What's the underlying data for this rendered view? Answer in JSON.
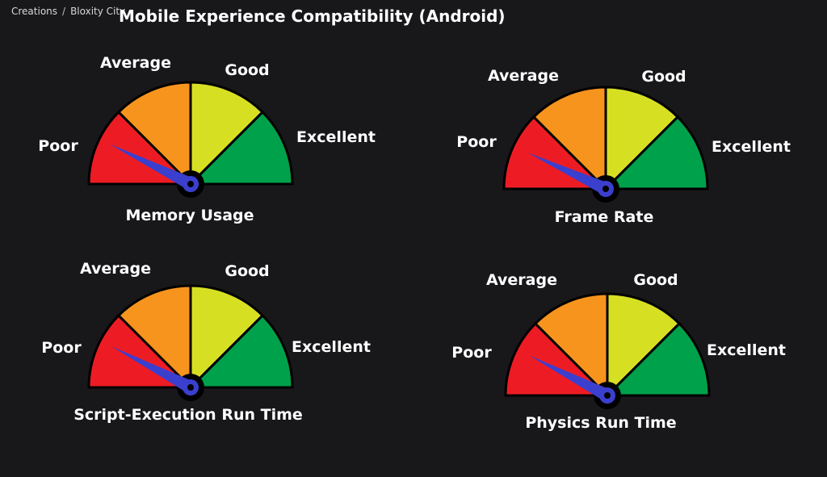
{
  "breadcrumb": {
    "root": "Creations",
    "separator": "/",
    "current": "Bloxity City"
  },
  "page_title": "Mobile Experience Compatibility (Android)",
  "rating_labels": {
    "poor": "Poor",
    "average": "Average",
    "good": "Good",
    "excellent": "Excellent"
  },
  "colors": {
    "background": "#18181b",
    "poor": "#ed1c24",
    "average": "#f7941d",
    "good": "#d7df23",
    "excellent": "#00a14b",
    "needle": "#3b3fce",
    "divider": "#000000"
  },
  "gauges": [
    {
      "name": "Memory Usage",
      "rating": "Poor"
    },
    {
      "name": "Frame Rate",
      "rating": "Poor"
    },
    {
      "name": "Script-Execution Run Time",
      "rating": "Poor"
    },
    {
      "name": "Physics Run Time",
      "rating": "Poor"
    }
  ]
}
